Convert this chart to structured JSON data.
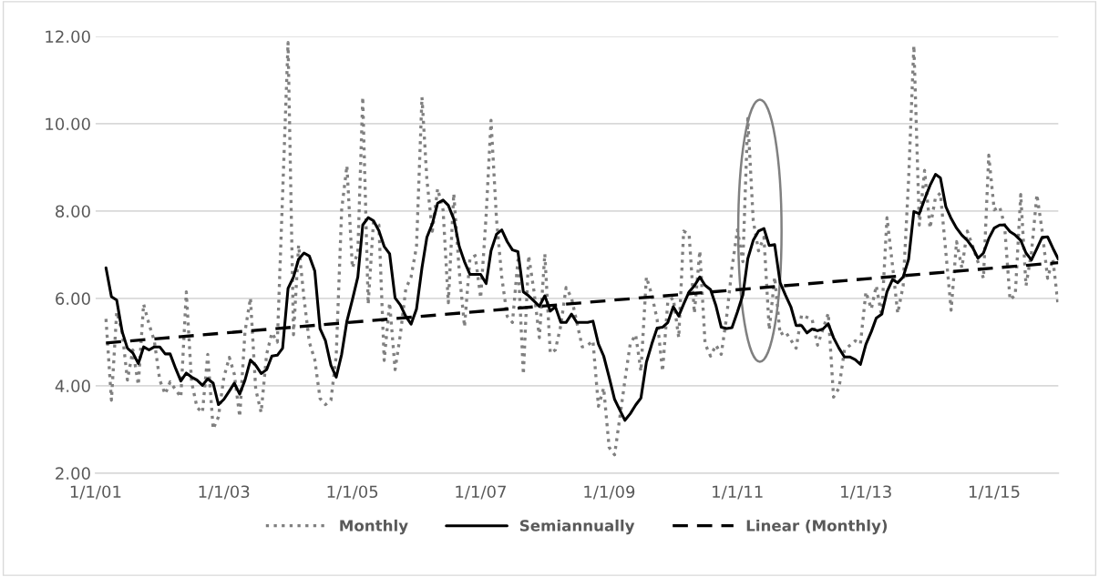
{
  "chart_data": {
    "type": "line",
    "xlim": [
      "2001-01-01",
      "2016-01-01"
    ],
    "xticks": [
      {
        "value": "2001-01-01",
        "label": "1/1/01"
      },
      {
        "value": "2003-01-01",
        "label": "1/1/03"
      },
      {
        "value": "2005-01-01",
        "label": "1/1/05"
      },
      {
        "value": "2007-01-01",
        "label": "1/1/07"
      },
      {
        "value": "2009-01-01",
        "label": "1/1/09"
      },
      {
        "value": "2011-01-01",
        "label": "1/1/11"
      },
      {
        "value": "2013-01-01",
        "label": "1/1/13"
      },
      {
        "value": "2015-01-01",
        "label": "1/1/15"
      }
    ],
    "ylim": [
      2,
      12
    ],
    "yticks": [
      {
        "value": 2,
        "label": "2.00"
      },
      {
        "value": 4,
        "label": "4.00"
      },
      {
        "value": 6,
        "label": "6.00"
      },
      {
        "value": 8,
        "label": "8.00"
      },
      {
        "value": 10,
        "label": "10.00"
      },
      {
        "value": 12,
        "label": "12.00"
      }
    ],
    "grid": "y",
    "legend": "bottom",
    "marker": "none",
    "series": [
      {
        "name": "Monthly",
        "color": "#808080",
        "line_style": "dotted",
        "x": [
          "2001-03",
          "2001-04",
          "2001-05",
          "2001-06",
          "2001-07",
          "2001-08",
          "2001-09",
          "2001-10",
          "2001-11",
          "2001-12",
          "2002-01",
          "2002-02",
          "2002-03",
          "2002-05",
          "2002-06",
          "2002-07",
          "2002-08",
          "2002-09",
          "2002-10",
          "2002-11",
          "2002-12",
          "2003-01",
          "2003-02",
          "2003-03",
          "2003-04",
          "2003-05",
          "2003-06",
          "2003-07",
          "2003-08",
          "2003-09",
          "2003-10",
          "2003-11",
          "2004-01",
          "2004-02",
          "2004-03",
          "2004-04",
          "2004-05",
          "2004-06",
          "2004-07",
          "2004-08",
          "2004-09",
          "2004-10",
          "2004-11",
          "2004-12",
          "2005-01",
          "2005-02",
          "2005-03",
          "2005-04",
          "2005-05",
          "2005-06",
          "2005-07",
          "2005-08",
          "2005-09",
          "2005-10",
          "2005-11",
          "2005-12",
          "2006-01",
          "2006-02",
          "2006-03",
          "2006-04",
          "2006-05",
          "2006-06",
          "2006-07",
          "2006-08",
          "2006-09",
          "2006-10",
          "2006-11",
          "2006-12",
          "2007-01",
          "2007-02",
          "2007-03",
          "2007-04",
          "2007-05",
          "2007-06",
          "2007-07",
          "2007-08",
          "2007-09",
          "2007-10",
          "2007-11",
          "2007-12",
          "2008-01",
          "2008-02",
          "2008-03",
          "2008-04",
          "2008-05",
          "2008-06",
          "2008-08",
          "2008-09",
          "2008-10",
          "2008-11",
          "2008-12",
          "2009-01",
          "2009-02",
          "2009-03",
          "2009-04",
          "2009-05",
          "2009-06",
          "2009-07",
          "2009-08",
          "2009-09",
          "2009-10",
          "2009-11",
          "2009-12",
          "2010-01",
          "2010-02",
          "2010-03",
          "2010-04",
          "2010-05",
          "2010-06",
          "2010-07",
          "2010-08",
          "2010-09",
          "2010-10",
          "2010-11",
          "2010-12",
          "2011-01",
          "2011-02",
          "2011-03",
          "2011-04",
          "2011-05",
          "2011-06",
          "2011-07",
          "2011-08",
          "2011-09",
          "2011-10",
          "2011-12",
          "2012-01",
          "2012-03",
          "2012-04",
          "2012-06",
          "2012-07",
          "2012-08",
          "2012-09",
          "2012-11",
          "2012-12",
          "2013-01",
          "2013-02",
          "2013-03",
          "2013-04",
          "2013-05",
          "2013-06",
          "2013-07",
          "2013-08",
          "2013-09",
          "2013-10",
          "2013-11",
          "2013-12",
          "2014-01",
          "2014-02",
          "2014-03",
          "2014-05",
          "2014-06",
          "2014-07",
          "2014-08",
          "2014-09",
          "2014-11",
          "2014-12",
          "2015-01",
          "2015-02",
          "2015-03",
          "2015-04",
          "2015-05",
          "2015-06",
          "2015-07",
          "2015-08",
          "2015-09",
          "2015-10",
          "2015-11",
          "2015-12",
          "2016-01"
        ],
        "values": [
          5.53,
          3.67,
          5.69,
          5.24,
          4.13,
          4.82,
          4.02,
          5.87,
          5.41,
          5.03,
          4.13,
          3.81,
          4.09,
          3.74,
          6.15,
          4.09,
          3.5,
          3.39,
          4.72,
          3.01,
          3.29,
          4.2,
          4.65,
          4.27,
          3.29,
          5.24,
          6.01,
          3.92,
          3.39,
          4.72,
          5.21,
          5.0,
          11.86,
          5.17,
          7.22,
          6.0,
          5.0,
          4.6,
          3.71,
          3.57,
          3.67,
          4.68,
          8.03,
          9.04,
          6.7,
          7.05,
          10.61,
          5.87,
          7.75,
          7.68,
          4.58,
          5.9,
          4.37,
          5.17,
          6.22,
          6.49,
          7.19,
          10.61,
          8.72,
          7.54,
          8.51,
          8.03,
          5.9,
          8.4,
          6.63,
          5.35,
          6.91,
          6.98,
          6.01,
          7.89,
          10.08,
          7.82,
          6.49,
          5.59,
          5.45,
          6.88,
          4.26,
          6.98,
          6.15,
          5.1,
          7.02,
          4.75,
          4.82,
          5.38,
          6.25,
          6.01,
          4.89,
          4.93,
          5.03,
          3.53,
          3.95,
          2.59,
          2.42,
          3.22,
          4.13,
          4.96,
          5.17,
          4.33,
          6.49,
          6.08,
          5.52,
          4.33,
          5.94,
          6.01,
          5.1,
          7.54,
          7.47,
          5.66,
          7.09,
          4.96,
          4.68,
          4.93,
          4.72,
          5.59,
          6.7,
          7.57,
          6.84,
          10.12,
          7.78,
          7.09,
          7.4,
          5.28,
          6.49,
          5.17,
          5.24,
          4.86,
          5.62,
          5.52,
          4.93,
          5.66,
          3.74,
          3.95,
          4.82,
          5.03,
          4.96,
          6.15,
          5.76,
          6.29,
          5.59,
          7.85,
          6.77,
          5.66,
          6.29,
          8.72,
          11.79,
          7.68,
          8.93,
          7.61,
          8.31,
          8.41,
          5.73,
          7.3,
          6.7,
          7.54,
          7.19,
          6.46,
          9.28,
          8.03,
          8.1,
          7.68,
          5.97,
          6.08,
          8.38,
          6.29,
          7.05,
          8.38,
          7.54,
          6.46,
          6.9,
          5.8
        ]
      },
      {
        "name": "Semiannually",
        "color": "#000000",
        "line_style": "solid",
        "x": [
          "2001-03",
          "2001-04",
          "2001-05",
          "2001-06",
          "2001-07",
          "2001-08",
          "2001-09",
          "2001-10",
          "2001-11",
          "2001-12",
          "2002-01",
          "2002-02",
          "2002-03",
          "2002-04",
          "2002-05",
          "2002-06",
          "2002-07",
          "2002-08",
          "2002-09",
          "2002-10",
          "2002-11",
          "2002-12",
          "2003-01",
          "2003-02",
          "2003-03",
          "2003-04",
          "2003-05",
          "2003-06",
          "2003-07",
          "2003-08",
          "2003-09",
          "2003-10",
          "2003-11",
          "2003-12",
          "2004-01",
          "2004-02",
          "2004-03",
          "2004-04",
          "2004-05",
          "2004-06",
          "2004-07",
          "2004-08",
          "2004-09",
          "2004-10",
          "2004-11",
          "2004-12",
          "2005-01",
          "2005-02",
          "2005-03",
          "2005-04",
          "2005-05",
          "2005-06",
          "2005-07",
          "2005-08",
          "2005-09",
          "2005-10",
          "2005-11",
          "2005-12",
          "2006-01",
          "2006-02",
          "2006-03",
          "2006-04",
          "2006-05",
          "2006-06",
          "2006-07",
          "2006-08",
          "2006-09",
          "2006-10",
          "2006-11",
          "2006-12",
          "2007-01",
          "2007-02",
          "2007-03",
          "2007-04",
          "2007-05",
          "2007-06",
          "2007-07",
          "2007-08",
          "2007-09",
          "2007-10",
          "2007-11",
          "2007-12",
          "2008-01",
          "2008-02",
          "2008-03",
          "2008-04",
          "2008-05",
          "2008-06",
          "2008-07",
          "2008-08",
          "2008-09",
          "2008-10",
          "2008-11",
          "2008-12",
          "2009-01",
          "2009-02",
          "2009-03",
          "2009-04",
          "2009-05",
          "2009-06",
          "2009-07",
          "2009-08",
          "2009-09",
          "2009-10",
          "2009-11",
          "2009-12",
          "2010-01",
          "2010-02",
          "2010-03",
          "2010-04",
          "2010-05",
          "2010-06",
          "2010-07",
          "2010-08",
          "2010-09",
          "2010-10",
          "2010-11",
          "2010-12",
          "2011-01",
          "2011-02",
          "2011-03",
          "2011-04",
          "2011-05",
          "2011-06",
          "2011-07",
          "2011-08",
          "2011-09",
          "2011-10",
          "2011-11",
          "2011-12",
          "2012-01",
          "2012-02",
          "2012-03",
          "2012-04",
          "2012-05",
          "2012-06",
          "2012-07",
          "2012-08",
          "2012-09",
          "2012-10",
          "2012-11",
          "2012-12",
          "2013-01",
          "2013-02",
          "2013-03",
          "2013-04",
          "2013-05",
          "2013-06",
          "2013-07",
          "2013-08",
          "2013-09",
          "2013-10",
          "2013-11",
          "2013-12",
          "2014-01",
          "2014-02",
          "2014-03",
          "2014-04",
          "2014-05",
          "2014-06",
          "2014-07",
          "2014-08",
          "2014-09",
          "2014-10",
          "2014-11",
          "2014-12",
          "2015-01",
          "2015-02",
          "2015-03",
          "2015-04",
          "2015-05",
          "2015-06",
          "2015-07",
          "2015-08",
          "2015-09",
          "2015-10",
          "2015-11",
          "2015-12",
          "2016-01"
        ],
        "values": [
          6.7,
          6.04,
          5.96,
          5.24,
          4.86,
          4.75,
          4.51,
          4.89,
          4.82,
          4.89,
          4.89,
          4.73,
          4.73,
          4.4,
          4.11,
          4.29,
          4.2,
          4.13,
          4.01,
          4.16,
          4.06,
          3.57,
          3.69,
          3.88,
          4.06,
          3.81,
          4.13,
          4.59,
          4.47,
          4.28,
          4.37,
          4.68,
          4.7,
          4.86,
          6.23,
          6.49,
          6.9,
          7.04,
          6.97,
          6.63,
          5.31,
          5.03,
          4.47,
          4.2,
          4.72,
          5.48,
          5.97,
          6.49,
          7.68,
          7.85,
          7.78,
          7.55,
          7.19,
          7.02,
          6.01,
          5.85,
          5.59,
          5.41,
          5.76,
          6.7,
          7.4,
          7.71,
          8.18,
          8.25,
          8.13,
          7.82,
          7.19,
          6.84,
          6.55,
          6.55,
          6.55,
          6.34,
          7.09,
          7.47,
          7.57,
          7.3,
          7.11,
          7.07,
          6.15,
          6.06,
          5.94,
          5.82,
          6.06,
          5.71,
          5.81,
          5.45,
          5.45,
          5.64,
          5.45,
          5.45,
          5.45,
          5.48,
          4.96,
          4.68,
          4.2,
          3.69,
          3.46,
          3.21,
          3.36,
          3.56,
          3.72,
          4.54,
          4.96,
          5.32,
          5.34,
          5.45,
          5.81,
          5.6,
          5.87,
          6.15,
          6.29,
          6.49,
          6.3,
          6.2,
          5.83,
          5.34,
          5.31,
          5.33,
          5.69,
          6.08,
          6.91,
          7.33,
          7.54,
          7.6,
          7.21,
          7.23,
          6.36,
          6.08,
          5.81,
          5.38,
          5.38,
          5.21,
          5.3,
          5.26,
          5.3,
          5.42,
          5.1,
          4.86,
          4.66,
          4.66,
          4.6,
          4.49,
          4.95,
          5.24,
          5.55,
          5.64,
          6.15,
          6.43,
          6.36,
          6.49,
          6.9,
          7.99,
          7.94,
          8.27,
          8.59,
          8.84,
          8.76,
          8.1,
          7.83,
          7.61,
          7.45,
          7.33,
          7.16,
          6.92,
          7.04,
          7.37,
          7.61,
          7.68,
          7.68,
          7.53,
          7.45,
          7.33,
          7.04,
          6.88,
          7.14,
          7.4,
          7.41,
          7.15,
          6.9
        ]
      },
      {
        "name": "Linear (Monthly)",
        "color": "#000000",
        "line_style": "dashed",
        "type": "line",
        "x": [
          "2001-03",
          "2016-01"
        ],
        "values": [
          4.98,
          6.82
        ]
      }
    ]
  }
}
